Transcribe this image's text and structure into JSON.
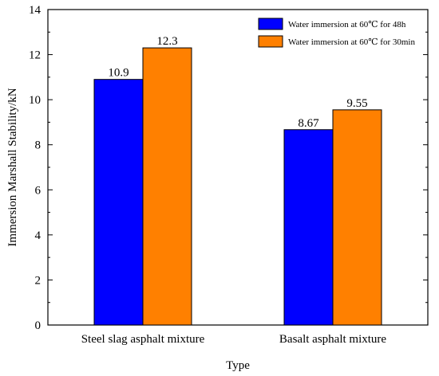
{
  "chart_data": {
    "type": "bar",
    "xlabel": "Type",
    "ylabel": "Immersion Marshall Stability/kN",
    "categories": [
      "Steel slag asphalt mixture",
      "Basalt asphalt mixture"
    ],
    "series": [
      {
        "name": "Water immersion at 60℃ for 48h",
        "values": [
          10.9,
          8.67
        ],
        "labels": [
          "10.9",
          "8.67"
        ],
        "color": "#0000ff"
      },
      {
        "name": "Water immersion at 60℃ for 30min",
        "values": [
          12.3,
          9.55
        ],
        "labels": [
          "12.3",
          "9.55"
        ],
        "color": "#ff8000"
      }
    ],
    "ylim": [
      0,
      14
    ],
    "yticks": [
      0,
      2,
      4,
      6,
      8,
      10,
      12,
      14
    ],
    "grid": false,
    "legend_position": "top-right"
  }
}
